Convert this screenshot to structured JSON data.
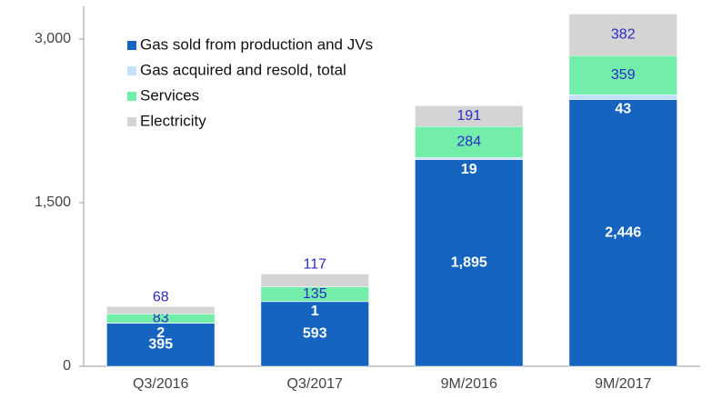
{
  "chart_data": {
    "type": "stacked_bar",
    "categories": [
      "Q3/2016",
      "Q3/2017",
      "9M/2016",
      "9M/2017"
    ],
    "series": [
      {
        "name": "Gas sold from production and JVs",
        "color": "#1565c0",
        "values": [
          395,
          593,
          1895,
          2446
        ],
        "value_labels": [
          "395",
          "593",
          "1,895",
          "2,446"
        ],
        "label_color": "#ffffff"
      },
      {
        "name": "Gas acquired and resold, total",
        "color": "#c4e2ff",
        "values": [
          2,
          1,
          19,
          43
        ],
        "label_color": "#ffffff"
      },
      {
        "name": "Services",
        "color": "#72eeaa",
        "values": [
          83,
          135,
          284,
          359
        ],
        "label_color": "#2b2bc8"
      },
      {
        "name": "Electricity",
        "color": "#d4d4d4",
        "values": [
          68,
          117,
          191,
          382
        ],
        "label_color": "#2b2bc8"
      }
    ],
    "ylim": [
      0,
      3300
    ],
    "yticks": [
      0,
      {
        "value": 1500,
        "label": "1,500"
      },
      {
        "value": 3000,
        "label": "3,000"
      }
    ],
    "grid": false,
    "legend": "upper left"
  }
}
